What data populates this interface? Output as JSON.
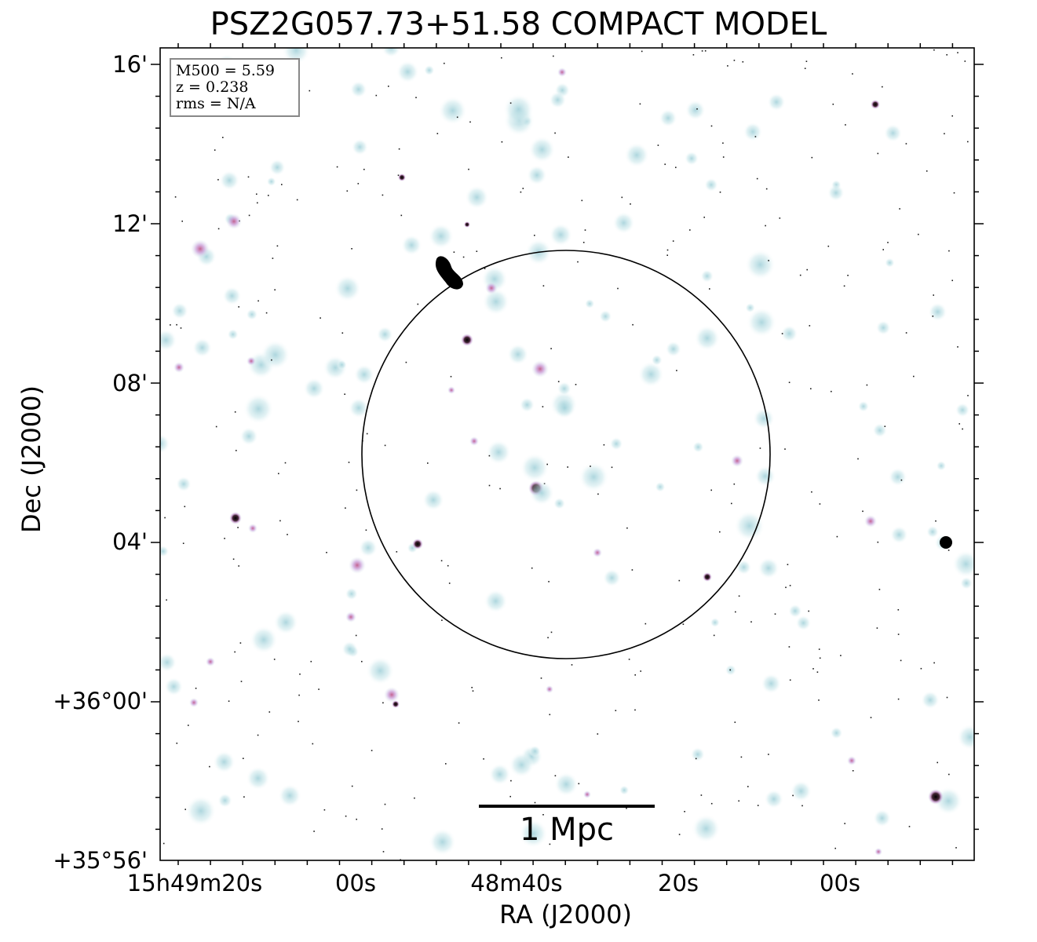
{
  "figure": {
    "title": "PSZ2G057.73+51.58 COMPACT MODEL",
    "xlabel": "RA (J2000)",
    "ylabel": "Dec (J2000)",
    "x_ticks": [
      "15h49m20s",
      "00s",
      "48m40s",
      "20s",
      "00s"
    ],
    "y_ticks": [
      "16'",
      "12'",
      "08'",
      "04'",
      "+36°00'",
      "+35°56'"
    ],
    "info": {
      "mass": "M500 = 5.59",
      "redshift": "z = 0.238",
      "rms": "rms = N/A"
    },
    "scalebar_label": "1 Mpc",
    "colors": {
      "background": "#ffffff",
      "faint_source": "#b9dde2",
      "mid_source": "#c79ad8",
      "bright_source": "#000000",
      "circle": "#000000"
    }
  }
}
